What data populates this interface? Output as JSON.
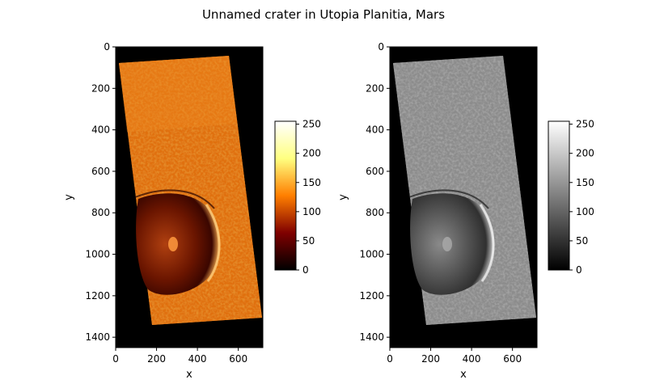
{
  "title": "Unnamed crater in Utopia Planitia, Mars",
  "colors": {
    "axes": "#000000",
    "background": "#000000"
  },
  "panels": [
    {
      "colormap": "afmhot",
      "xlabel": "x",
      "ylabel": "y",
      "xlim": [
        0,
        720
      ],
      "ylim": [
        1450,
        0
      ],
      "xticks": [
        "0",
        "200",
        "400",
        "600"
      ],
      "xtick_values": [
        0,
        200,
        400,
        600
      ],
      "yticks": [
        "0",
        "200",
        "400",
        "600",
        "800",
        "1000",
        "1200",
        "1400"
      ],
      "ytick_values": [
        0,
        200,
        400,
        600,
        800,
        1000,
        1200,
        1400
      ],
      "colorbar": {
        "range": [
          0,
          255
        ],
        "ticks": [
          "0",
          "50",
          "100",
          "150",
          "200",
          "250"
        ],
        "tick_values": [
          0,
          50,
          100,
          150,
          200,
          250
        ]
      }
    },
    {
      "colormap": "gray",
      "xlabel": "x",
      "ylabel": "y",
      "xlim": [
        0,
        720
      ],
      "ylim": [
        1450,
        0
      ],
      "xticks": [
        "0",
        "200",
        "400",
        "600"
      ],
      "xtick_values": [
        0,
        200,
        400,
        600
      ],
      "yticks": [
        "0",
        "200",
        "400",
        "600",
        "800",
        "1000",
        "1200",
        "1400"
      ],
      "ytick_values": [
        0,
        200,
        400,
        600,
        800,
        1000,
        1200,
        1400
      ],
      "colorbar": {
        "range": [
          0,
          255
        ],
        "ticks": [
          "0",
          "50",
          "100",
          "150",
          "200",
          "250"
        ],
        "tick_values": [
          0,
          50,
          100,
          150,
          200,
          250
        ]
      }
    }
  ]
}
